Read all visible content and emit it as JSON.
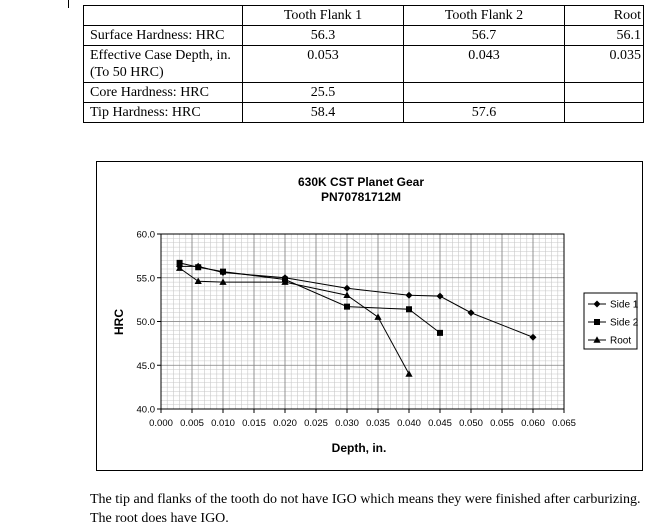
{
  "table": {
    "headers": [
      "",
      "Tooth Flank 1",
      "Tooth Flank 2",
      "Root"
    ],
    "rows": [
      {
        "label": "Surface Hardness: HRC",
        "values": [
          "56.3",
          "56.7",
          "56.1"
        ]
      },
      {
        "label": "Effective Case Depth, in. (To 50 HRC)",
        "values": [
          "0.053",
          "0.043",
          "0.035"
        ]
      },
      {
        "label": "Core Hardness: HRC",
        "values": [
          "25.5",
          "",
          ""
        ]
      },
      {
        "label": "Tip Hardness: HRC",
        "values": [
          "58.4",
          "57.6",
          ""
        ]
      }
    ]
  },
  "chart_data": {
    "type": "line",
    "title": "630K CST Planet Gear",
    "subtitle": "PN70781712M",
    "xlabel": "Depth, in.",
    "ylabel": "HRC",
    "xlim": [
      0.0,
      0.065
    ],
    "ylim": [
      40.0,
      60.0
    ],
    "x_ticks": [
      "0.000",
      "0.005",
      "0.010",
      "0.015",
      "0.020",
      "0.025",
      "0.030",
      "0.035",
      "0.040",
      "0.045",
      "0.050",
      "0.055",
      "0.060",
      "0.065"
    ],
    "y_ticks": [
      "40.0",
      "45.0",
      "50.0",
      "55.0",
      "60.0"
    ],
    "grid": true,
    "legend_position": "right",
    "series": [
      {
        "name": "Side 1",
        "marker": "diamond",
        "x": [
          0.003,
          0.006,
          0.01,
          0.02,
          0.03,
          0.04,
          0.045,
          0.05,
          0.06
        ],
        "y": [
          56.3,
          56.3,
          55.6,
          55.0,
          53.8,
          53.0,
          52.9,
          51.0,
          48.2
        ]
      },
      {
        "name": "Side 2",
        "marker": "square",
        "x": [
          0.003,
          0.006,
          0.01,
          0.02,
          0.03,
          0.04,
          0.045
        ],
        "y": [
          56.7,
          56.2,
          55.7,
          54.8,
          51.7,
          51.4,
          48.7
        ]
      },
      {
        "name": "Root",
        "marker": "triangle",
        "x": [
          0.003,
          0.006,
          0.01,
          0.02,
          0.03,
          0.035,
          0.04
        ],
        "y": [
          56.1,
          54.6,
          54.5,
          54.5,
          53.0,
          50.5,
          44.0
        ]
      }
    ]
  },
  "paragraph": "The tip and flanks of the tooth do not have IGO which means they were finished after carburizing.  The root does have IGO."
}
